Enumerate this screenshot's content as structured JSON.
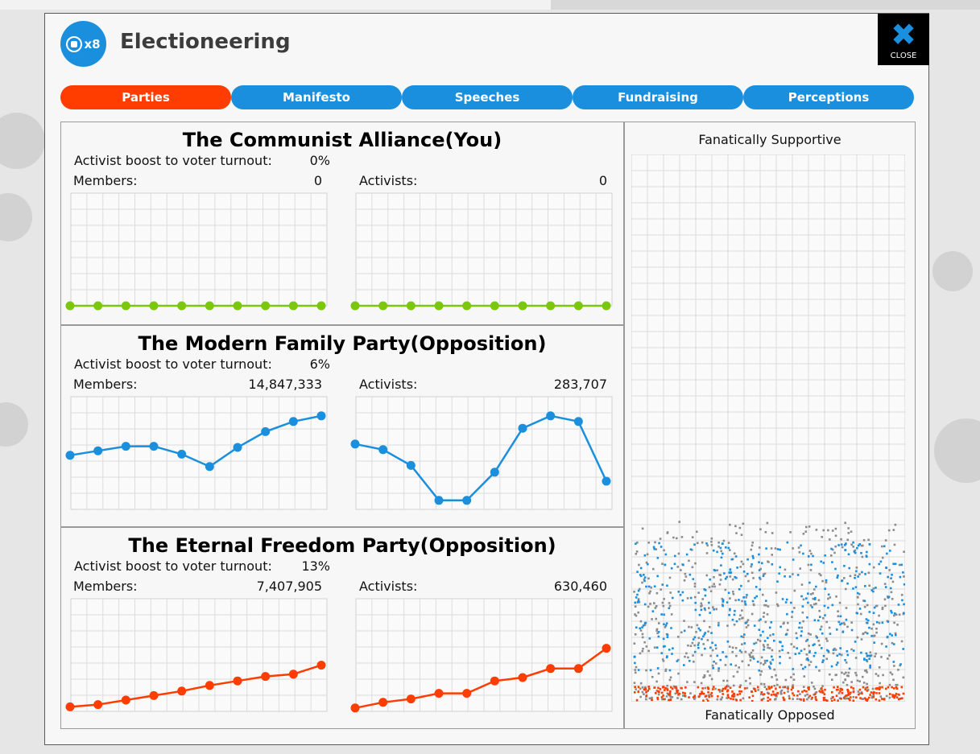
{
  "window": {
    "title": "Electioneering",
    "badge": "x8",
    "close_label": "CLOSE"
  },
  "tabs": [
    {
      "label": "Parties",
      "active": true
    },
    {
      "label": "Manifesto",
      "active": false
    },
    {
      "label": "Speeches",
      "active": false
    },
    {
      "label": "Fundraising",
      "active": false
    },
    {
      "label": "Perceptions",
      "active": false
    }
  ],
  "labels": {
    "activist_boost": "Activist boost to voter turnout:",
    "members": "Members:",
    "activists": "Activists:"
  },
  "parties": [
    {
      "name": "The Communist Alliance(You)",
      "boost": "0%",
      "members": "0",
      "activists": "0",
      "color": "#7ac70c",
      "members_history": [
        0,
        0,
        0,
        0,
        0,
        0,
        0,
        0,
        0,
        0
      ],
      "activists_history": [
        0,
        0,
        0,
        0,
        0,
        0,
        0,
        0,
        0,
        0
      ]
    },
    {
      "name": "The Modern Family Party(Opposition)",
      "boost": "6%",
      "members": "14,847,333",
      "activists": "283,707",
      "color": "#1a8fde",
      "members_history": [
        0.48,
        0.52,
        0.56,
        0.56,
        0.49,
        0.38,
        0.55,
        0.69,
        0.78,
        0.83
      ],
      "activists_history": [
        0.58,
        0.53,
        0.39,
        0.08,
        0.08,
        0.33,
        0.72,
        0.83,
        0.78,
        0.25
      ]
    },
    {
      "name": "The Eternal Freedom Party(Opposition)",
      "boost": "13%",
      "members": "7,407,905",
      "activists": "630,460",
      "color": "#ff3d00",
      "members_history": [
        0.04,
        0.06,
        0.1,
        0.14,
        0.18,
        0.23,
        0.27,
        0.31,
        0.33,
        0.41
      ],
      "activists_history": [
        0.03,
        0.08,
        0.11,
        0.16,
        0.16,
        0.27,
        0.3,
        0.38,
        0.38,
        0.56
      ]
    }
  ],
  "perception": {
    "top_label": "Fanatically Supportive",
    "bottom_label": "Fanatically Opposed",
    "colors": {
      "you": "#ff3d00",
      "neutral": "#8c8c8c",
      "opposition": "#1a8fde"
    }
  }
}
